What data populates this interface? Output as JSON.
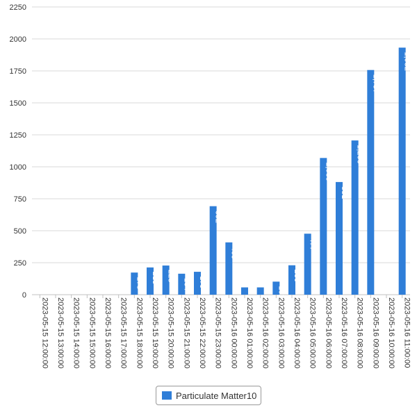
{
  "chart_data": {
    "type": "bar",
    "title": "",
    "xlabel": "",
    "ylabel": "",
    "ylim": [
      0,
      2250
    ],
    "yticks": [
      0,
      250,
      500,
      750,
      1000,
      1250,
      1500,
      1750,
      2000,
      2250
    ],
    "grid": true,
    "legend_position": "bottom-center",
    "categories": [
      "2023-05-15 12:00:00",
      "2023-05-15 13:00:00",
      "2023-05-15 14:00:00",
      "2023-05-15 15:00:00",
      "2023-05-15 16:00:00",
      "2023-05-15 17:00:00",
      "2023-05-15 18:00:00",
      "2023-05-15 19:00:00",
      "2023-05-15 20:00:00",
      "2023-05-15 21:00:00",
      "2023-05-15 22:00:00",
      "2023-05-15 23:00:00",
      "2023-05-16 00:00:00",
      "2023-05-16 01:00:00",
      "2023-05-16 02:00:00",
      "2023-05-16 03:00:00",
      "2023-05-16 04:00:00",
      "2023-05-16 05:00:00",
      "2023-05-16 06:00:00",
      "2023-05-16 07:00:00",
      "2023-05-16 08:00:00",
      "2023-05-16 09:00:00",
      "2023-05-16 10:00:00",
      "2023-05-16 11:00:00"
    ],
    "series": [
      {
        "name": "Particulate Matter10",
        "color": "#2f7ed8",
        "values": [
          null,
          null,
          null,
          null,
          null,
          null,
          173,
          213,
          228,
          164,
          179,
          692,
          409,
          57,
          57,
          102,
          230,
          477,
          1069,
          881,
          1206,
          1757,
          null,
          1932
        ],
        "labels": [
          "",
          "",
          "",
          "",
          "",
          "",
          "173",
          "213",
          "228",
          "164",
          "179",
          "692",
          "409",
          "",
          "",
          "102",
          "230",
          "477",
          "1,069",
          "881",
          "1,206",
          "1,757",
          "",
          "1,932"
        ]
      }
    ]
  }
}
